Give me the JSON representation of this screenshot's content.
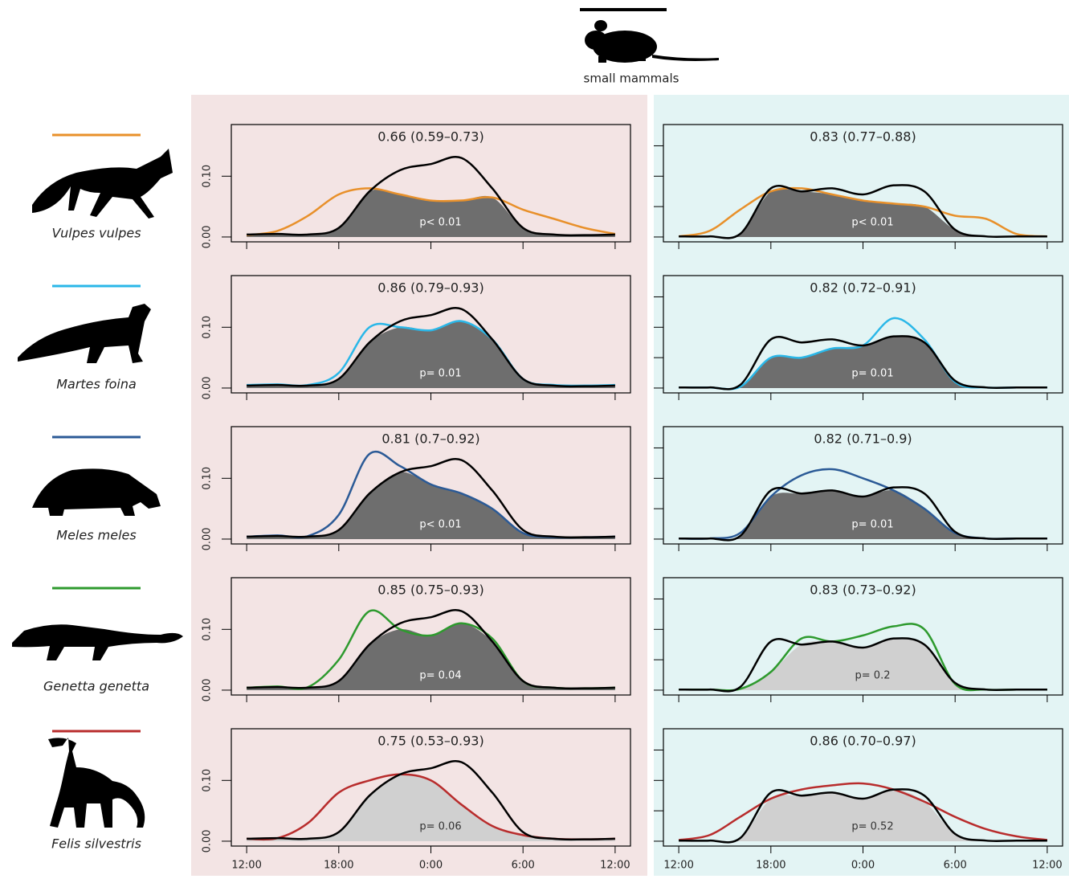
{
  "header_label": "small mammals",
  "species": [
    "Vulpes vulpes",
    "Martes foina",
    "Meles meles",
    "Genetta genetta",
    "Felis silvestris"
  ],
  "chart_data": [
    {
      "type": "line",
      "title": "0.66 (0.59–0.73)",
      "annotation": "p< 0.01",
      "fill_color": "#6e6e6e",
      "x": [
        0,
        2,
        4,
        6,
        8,
        10,
        12,
        14,
        16,
        18,
        20,
        22,
        24
      ],
      "series": [
        {
          "color": "#e8902a",
          "values": [
            0.003,
            0.01,
            0.035,
            0.07,
            0.08,
            0.07,
            0.06,
            0.06,
            0.065,
            0.045,
            0.03,
            0.015,
            0.005
          ]
        },
        {
          "color": "#000000",
          "values": [
            0.004,
            0.005,
            0.004,
            0.015,
            0.075,
            0.11,
            0.12,
            0.13,
            0.08,
            0.015,
            0.004,
            0.003,
            0.004
          ]
        }
      ],
      "xlim": [
        -1,
        25
      ],
      "ylim": [
        -0.008,
        0.185
      ],
      "xtick_labels": false,
      "ytick_labels": true,
      "xticks": [
        {
          "value": 0,
          "label": "12:00"
        },
        {
          "value": 6,
          "label": "18:00"
        },
        {
          "value": 12,
          "label": "0:00"
        },
        {
          "value": 18,
          "label": "6:00"
        },
        {
          "value": 24,
          "label": "12:00"
        }
      ],
      "yticks": [
        {
          "value": 0,
          "label": "0.00"
        },
        {
          "value": 0.1,
          "label": "0.10"
        }
      ]
    },
    {
      "type": "line",
      "title": "0.83 (0.77–0.88)",
      "annotation": "p< 0.01",
      "fill_color": "#6e6e6e",
      "x": [
        0,
        2,
        4,
        6,
        8,
        10,
        12,
        14,
        16,
        18,
        20,
        22,
        24
      ],
      "series": [
        {
          "color": "#e8902a",
          "values": [
            0.001,
            0.01,
            0.045,
            0.075,
            0.08,
            0.07,
            0.06,
            0.055,
            0.05,
            0.035,
            0.03,
            0.005,
            0.001
          ]
        },
        {
          "color": "#000000",
          "values": [
            0.001,
            0.001,
            0.005,
            0.08,
            0.075,
            0.08,
            0.07,
            0.085,
            0.075,
            0.012,
            0.001,
            0.001,
            0.001
          ]
        }
      ],
      "xlim": [
        -1,
        25
      ],
      "ylim": [
        -0.008,
        0.185
      ],
      "xtick_labels": false,
      "ytick_labels": false,
      "xticks": [
        {
          "value": 0,
          "label": "12:00"
        },
        {
          "value": 6,
          "label": "18:00"
        },
        {
          "value": 12,
          "label": "0:00"
        },
        {
          "value": 18,
          "label": "6:00"
        },
        {
          "value": 24,
          "label": "12:00"
        }
      ],
      "yticks": [
        0,
        0.05,
        0.1,
        0.15
      ]
    },
    {
      "type": "line",
      "title": "0.86 (0.79–0.93)",
      "annotation": "p= 0.01",
      "fill_color": "#6e6e6e",
      "x": [
        0,
        2,
        4,
        6,
        8,
        10,
        12,
        14,
        16,
        18,
        20,
        22,
        24
      ],
      "series": [
        {
          "color": "#2ab7e8",
          "values": [
            0.005,
            0.006,
            0.005,
            0.025,
            0.1,
            0.1,
            0.095,
            0.11,
            0.08,
            0.015,
            0.005,
            0.004,
            0.005
          ]
        },
        {
          "color": "#000000",
          "values": [
            0.004,
            0.005,
            0.004,
            0.015,
            0.075,
            0.11,
            0.12,
            0.13,
            0.08,
            0.015,
            0.004,
            0.003,
            0.004
          ]
        }
      ],
      "xlim": [
        -1,
        25
      ],
      "ylim": [
        -0.008,
        0.185
      ],
      "xtick_labels": false,
      "ytick_labels": true,
      "xticks": [
        {
          "value": 0,
          "label": "12:00"
        },
        {
          "value": 6,
          "label": "18:00"
        },
        {
          "value": 12,
          "label": "0:00"
        },
        {
          "value": 18,
          "label": "6:00"
        },
        {
          "value": 24,
          "label": "12:00"
        }
      ],
      "yticks": [
        {
          "value": 0,
          "label": "0.00"
        },
        {
          "value": 0.1,
          "label": "0.10"
        }
      ]
    },
    {
      "type": "line",
      "title": "0.82 (0.72–0.91)",
      "annotation": "p= 0.01",
      "fill_color": "#6e6e6e",
      "x": [
        0,
        2,
        4,
        6,
        8,
        10,
        12,
        14,
        16,
        18,
        20,
        22,
        24
      ],
      "series": [
        {
          "color": "#2ab7e8",
          "values": [
            0.001,
            0.001,
            0.002,
            0.05,
            0.05,
            0.065,
            0.07,
            0.115,
            0.08,
            0.01,
            0.001,
            0.001,
            0.001
          ]
        },
        {
          "color": "#000000",
          "values": [
            0.001,
            0.001,
            0.005,
            0.08,
            0.075,
            0.08,
            0.07,
            0.085,
            0.075,
            0.012,
            0.001,
            0.001,
            0.001
          ]
        }
      ],
      "xlim": [
        -1,
        25
      ],
      "ylim": [
        -0.008,
        0.185
      ],
      "xtick_labels": false,
      "ytick_labels": false,
      "xticks": [
        {
          "value": 0,
          "label": "12:00"
        },
        {
          "value": 6,
          "label": "18:00"
        },
        {
          "value": 12,
          "label": "0:00"
        },
        {
          "value": 18,
          "label": "6:00"
        },
        {
          "value": 24,
          "label": "12:00"
        }
      ],
      "yticks": [
        0,
        0.05,
        0.1,
        0.15
      ]
    },
    {
      "type": "line",
      "title": "0.81 (0.7–0.92)",
      "annotation": "p< 0.01",
      "fill_color": "#6e6e6e",
      "x": [
        0,
        2,
        4,
        6,
        8,
        10,
        12,
        14,
        16,
        18,
        20,
        22,
        24
      ],
      "series": [
        {
          "color": "#2b5a96",
          "values": [
            0.004,
            0.006,
            0.005,
            0.04,
            0.14,
            0.12,
            0.09,
            0.075,
            0.05,
            0.01,
            0.003,
            0.003,
            0.004
          ]
        },
        {
          "color": "#000000",
          "values": [
            0.004,
            0.005,
            0.004,
            0.015,
            0.075,
            0.11,
            0.12,
            0.13,
            0.08,
            0.015,
            0.004,
            0.003,
            0.004
          ]
        }
      ],
      "xlim": [
        -1,
        25
      ],
      "ylim": [
        -0.008,
        0.185
      ],
      "xtick_labels": false,
      "ytick_labels": true,
      "xticks": [
        {
          "value": 0,
          "label": "12:00"
        },
        {
          "value": 6,
          "label": "18:00"
        },
        {
          "value": 12,
          "label": "0:00"
        },
        {
          "value": 18,
          "label": "6:00"
        },
        {
          "value": 24,
          "label": "12:00"
        }
      ],
      "yticks": [
        {
          "value": 0,
          "label": "0.00"
        },
        {
          "value": 0.1,
          "label": "0.10"
        }
      ]
    },
    {
      "type": "line",
      "title": "0.82 (0.71–0.9)",
      "annotation": "p= 0.01",
      "fill_color": "#6e6e6e",
      "x": [
        0,
        2,
        4,
        6,
        8,
        10,
        12,
        14,
        16,
        18,
        20,
        22,
        24
      ],
      "series": [
        {
          "color": "#2b5a96",
          "values": [
            0.001,
            0.001,
            0.01,
            0.07,
            0.105,
            0.115,
            0.1,
            0.08,
            0.05,
            0.01,
            0.001,
            0.001,
            0.001
          ]
        },
        {
          "color": "#000000",
          "values": [
            0.001,
            0.001,
            0.005,
            0.08,
            0.075,
            0.08,
            0.07,
            0.085,
            0.075,
            0.012,
            0.001,
            0.001,
            0.001
          ]
        }
      ],
      "xlim": [
        -1,
        25
      ],
      "ylim": [
        -0.008,
        0.185
      ],
      "xtick_labels": false,
      "ytick_labels": false,
      "xticks": [
        {
          "value": 0,
          "label": "12:00"
        },
        {
          "value": 6,
          "label": "18:00"
        },
        {
          "value": 12,
          "label": "0:00"
        },
        {
          "value": 18,
          "label": "6:00"
        },
        {
          "value": 24,
          "label": "12:00"
        }
      ],
      "yticks": [
        0,
        0.05,
        0.1,
        0.15
      ]
    },
    {
      "type": "line",
      "title": "0.85 (0.75–0.93)",
      "annotation": "p= 0.04",
      "fill_color": "#6e6e6e",
      "x": [
        0,
        2,
        4,
        6,
        8,
        10,
        12,
        14,
        16,
        18,
        20,
        22,
        24
      ],
      "series": [
        {
          "color": "#2e9a2e",
          "values": [
            0.004,
            0.006,
            0.005,
            0.05,
            0.13,
            0.1,
            0.09,
            0.11,
            0.085,
            0.015,
            0.004,
            0.003,
            0.004
          ]
        },
        {
          "color": "#000000",
          "values": [
            0.004,
            0.005,
            0.004,
            0.015,
            0.075,
            0.11,
            0.12,
            0.13,
            0.08,
            0.015,
            0.004,
            0.003,
            0.004
          ]
        }
      ],
      "xlim": [
        -1,
        25
      ],
      "ylim": [
        -0.008,
        0.185
      ],
      "xtick_labels": false,
      "ytick_labels": true,
      "xticks": [
        {
          "value": 0,
          "label": "12:00"
        },
        {
          "value": 6,
          "label": "18:00"
        },
        {
          "value": 12,
          "label": "0:00"
        },
        {
          "value": 18,
          "label": "6:00"
        },
        {
          "value": 24,
          "label": "12:00"
        }
      ],
      "yticks": [
        {
          "value": 0,
          "label": "0.00"
        },
        {
          "value": 0.1,
          "label": "0.10"
        }
      ]
    },
    {
      "type": "line",
      "title": "0.83 (0.73–0.92)",
      "annotation": "p= 0.2",
      "fill_color": "#d0d0d0",
      "x": [
        0,
        2,
        4,
        6,
        8,
        10,
        12,
        14,
        16,
        18,
        20,
        22,
        24
      ],
      "series": [
        {
          "color": "#2e9a2e",
          "values": [
            0.001,
            0.001,
            0.002,
            0.03,
            0.085,
            0.08,
            0.09,
            0.105,
            0.1,
            0.01,
            0.001,
            0.001,
            0.001
          ]
        },
        {
          "color": "#000000",
          "values": [
            0.001,
            0.001,
            0.005,
            0.08,
            0.075,
            0.08,
            0.07,
            0.085,
            0.075,
            0.012,
            0.001,
            0.001,
            0.001
          ]
        }
      ],
      "xlim": [
        -1,
        25
      ],
      "ylim": [
        -0.008,
        0.185
      ],
      "xtick_labels": false,
      "ytick_labels": false,
      "xticks": [
        {
          "value": 0,
          "label": "12:00"
        },
        {
          "value": 6,
          "label": "18:00"
        },
        {
          "value": 12,
          "label": "0:00"
        },
        {
          "value": 18,
          "label": "6:00"
        },
        {
          "value": 24,
          "label": "12:00"
        }
      ],
      "yticks": [
        0,
        0.05,
        0.1,
        0.15
      ]
    },
    {
      "type": "line",
      "title": "0.75 (0.53–0.93)",
      "annotation": "p= 0.06",
      "fill_color": "#d0d0d0",
      "x": [
        0,
        2,
        4,
        6,
        8,
        10,
        12,
        14,
        16,
        18,
        20,
        22,
        24
      ],
      "series": [
        {
          "color": "#b82c2c",
          "values": [
            0.004,
            0.005,
            0.03,
            0.08,
            0.1,
            0.11,
            0.1,
            0.06,
            0.025,
            0.01,
            0.004,
            0.003,
            0.004
          ]
        },
        {
          "color": "#000000",
          "values": [
            0.004,
            0.005,
            0.004,
            0.015,
            0.075,
            0.11,
            0.12,
            0.13,
            0.08,
            0.015,
            0.004,
            0.003,
            0.004
          ]
        }
      ],
      "xlim": [
        -1,
        25
      ],
      "ylim": [
        -0.008,
        0.185
      ],
      "xtick_labels": true,
      "ytick_labels": true,
      "xticks": [
        {
          "value": 0,
          "label": "12:00"
        },
        {
          "value": 6,
          "label": "18:00"
        },
        {
          "value": 12,
          "label": "0:00"
        },
        {
          "value": 18,
          "label": "6:00"
        },
        {
          "value": 24,
          "label": "12:00"
        }
      ],
      "yticks": [
        {
          "value": 0,
          "label": "0.00"
        },
        {
          "value": 0.1,
          "label": "0.10"
        }
      ]
    },
    {
      "type": "line",
      "title": "0.86 (0.70–0.97)",
      "annotation": "p= 0.52",
      "fill_color": "#d0d0d0",
      "x": [
        0,
        2,
        4,
        6,
        8,
        10,
        12,
        14,
        16,
        18,
        20,
        22,
        24
      ],
      "series": [
        {
          "color": "#b82c2c",
          "values": [
            0.002,
            0.01,
            0.04,
            0.07,
            0.085,
            0.092,
            0.095,
            0.085,
            0.065,
            0.04,
            0.02,
            0.008,
            0.002
          ]
        },
        {
          "color": "#000000",
          "values": [
            0.001,
            0.001,
            0.005,
            0.08,
            0.075,
            0.08,
            0.07,
            0.085,
            0.075,
            0.012,
            0.001,
            0.001,
            0.001
          ]
        }
      ],
      "xlim": [
        -1,
        25
      ],
      "ylim": [
        -0.008,
        0.185
      ],
      "xtick_labels": true,
      "ytick_labels": false,
      "xticks": [
        {
          "value": 0,
          "label": "12:00"
        },
        {
          "value": 6,
          "label": "18:00"
        },
        {
          "value": 12,
          "label": "0:00"
        },
        {
          "value": 18,
          "label": "6:00"
        },
        {
          "value": 24,
          "label": "12:00"
        }
      ],
      "yticks": [
        0,
        0.05,
        0.1,
        0.15
      ]
    }
  ]
}
